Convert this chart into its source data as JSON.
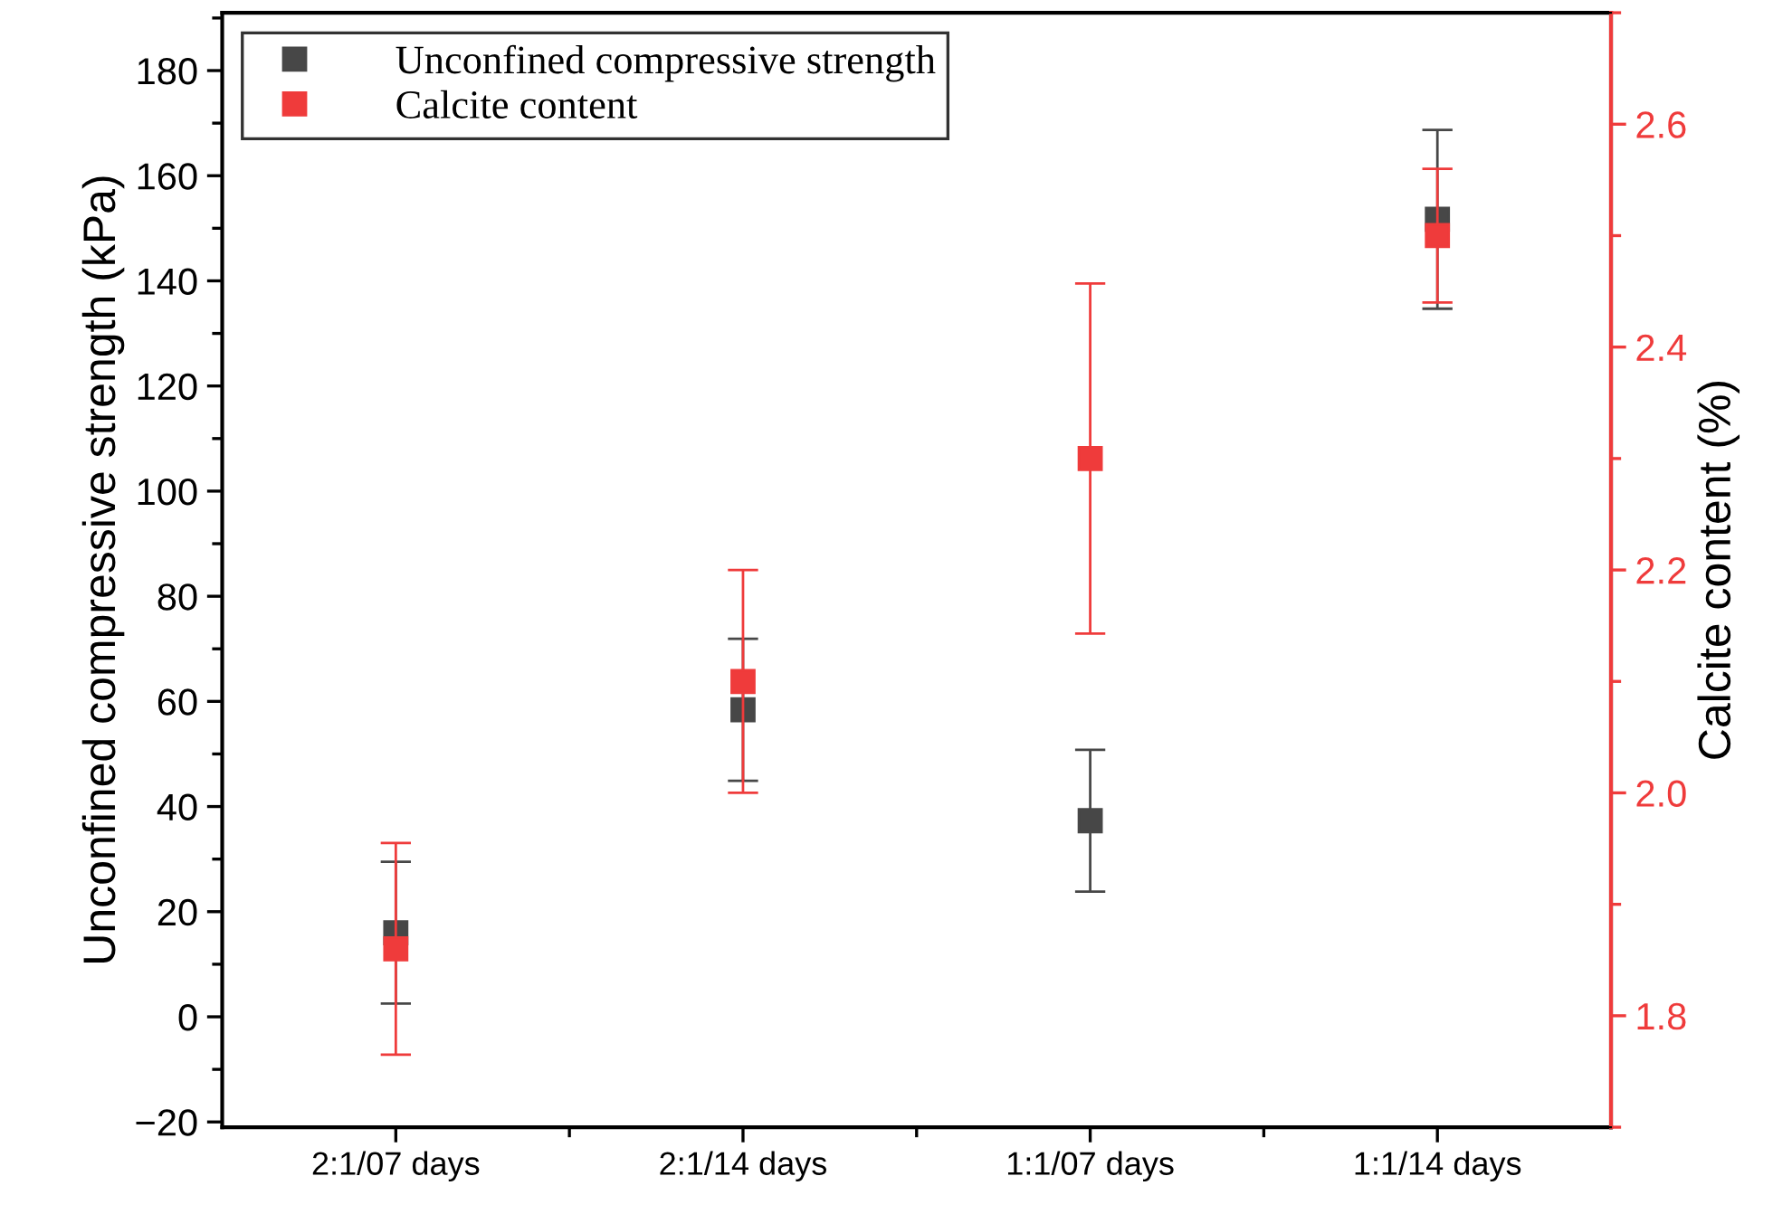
{
  "chart_data": {
    "type": "scatter",
    "categories": [
      "2:1/07 days",
      "2:1/14 days",
      "1:1/07 days",
      "1:1/14 days"
    ],
    "ylabel": "Unconfined compressive strength (kPa)",
    "y2label": "Calcite content (%)",
    "ylim": [
      -21,
      191
    ],
    "yticks": [
      {
        "value": -20,
        "label": "−20"
      },
      0,
      20,
      40,
      60,
      80,
      100,
      120,
      140,
      160,
      180
    ],
    "y2lim": [
      1.7,
      2.7
    ],
    "y2ticks": [
      1.8,
      {
        "value": 2,
        "label": "2.0"
      },
      2.2,
      2.4,
      2.6
    ],
    "marker": "square",
    "legend": "top left",
    "grid": false,
    "series": [
      {
        "name": "Unconfined compressive strength",
        "color": "#474747",
        "values": [
          16,
          58.4,
          37.3,
          151.7
        ],
        "errors": [
          13.5,
          13.5,
          13.5,
          17
        ]
      },
      {
        "name": "Calcite content",
        "color": "#ef3b3b",
        "axis": "y2",
        "values": [
          1.86,
          2.1,
          2.3,
          2.5
        ],
        "errors": [
          0.095,
          0.1,
          0.157,
          0.06
        ]
      }
    ]
  }
}
